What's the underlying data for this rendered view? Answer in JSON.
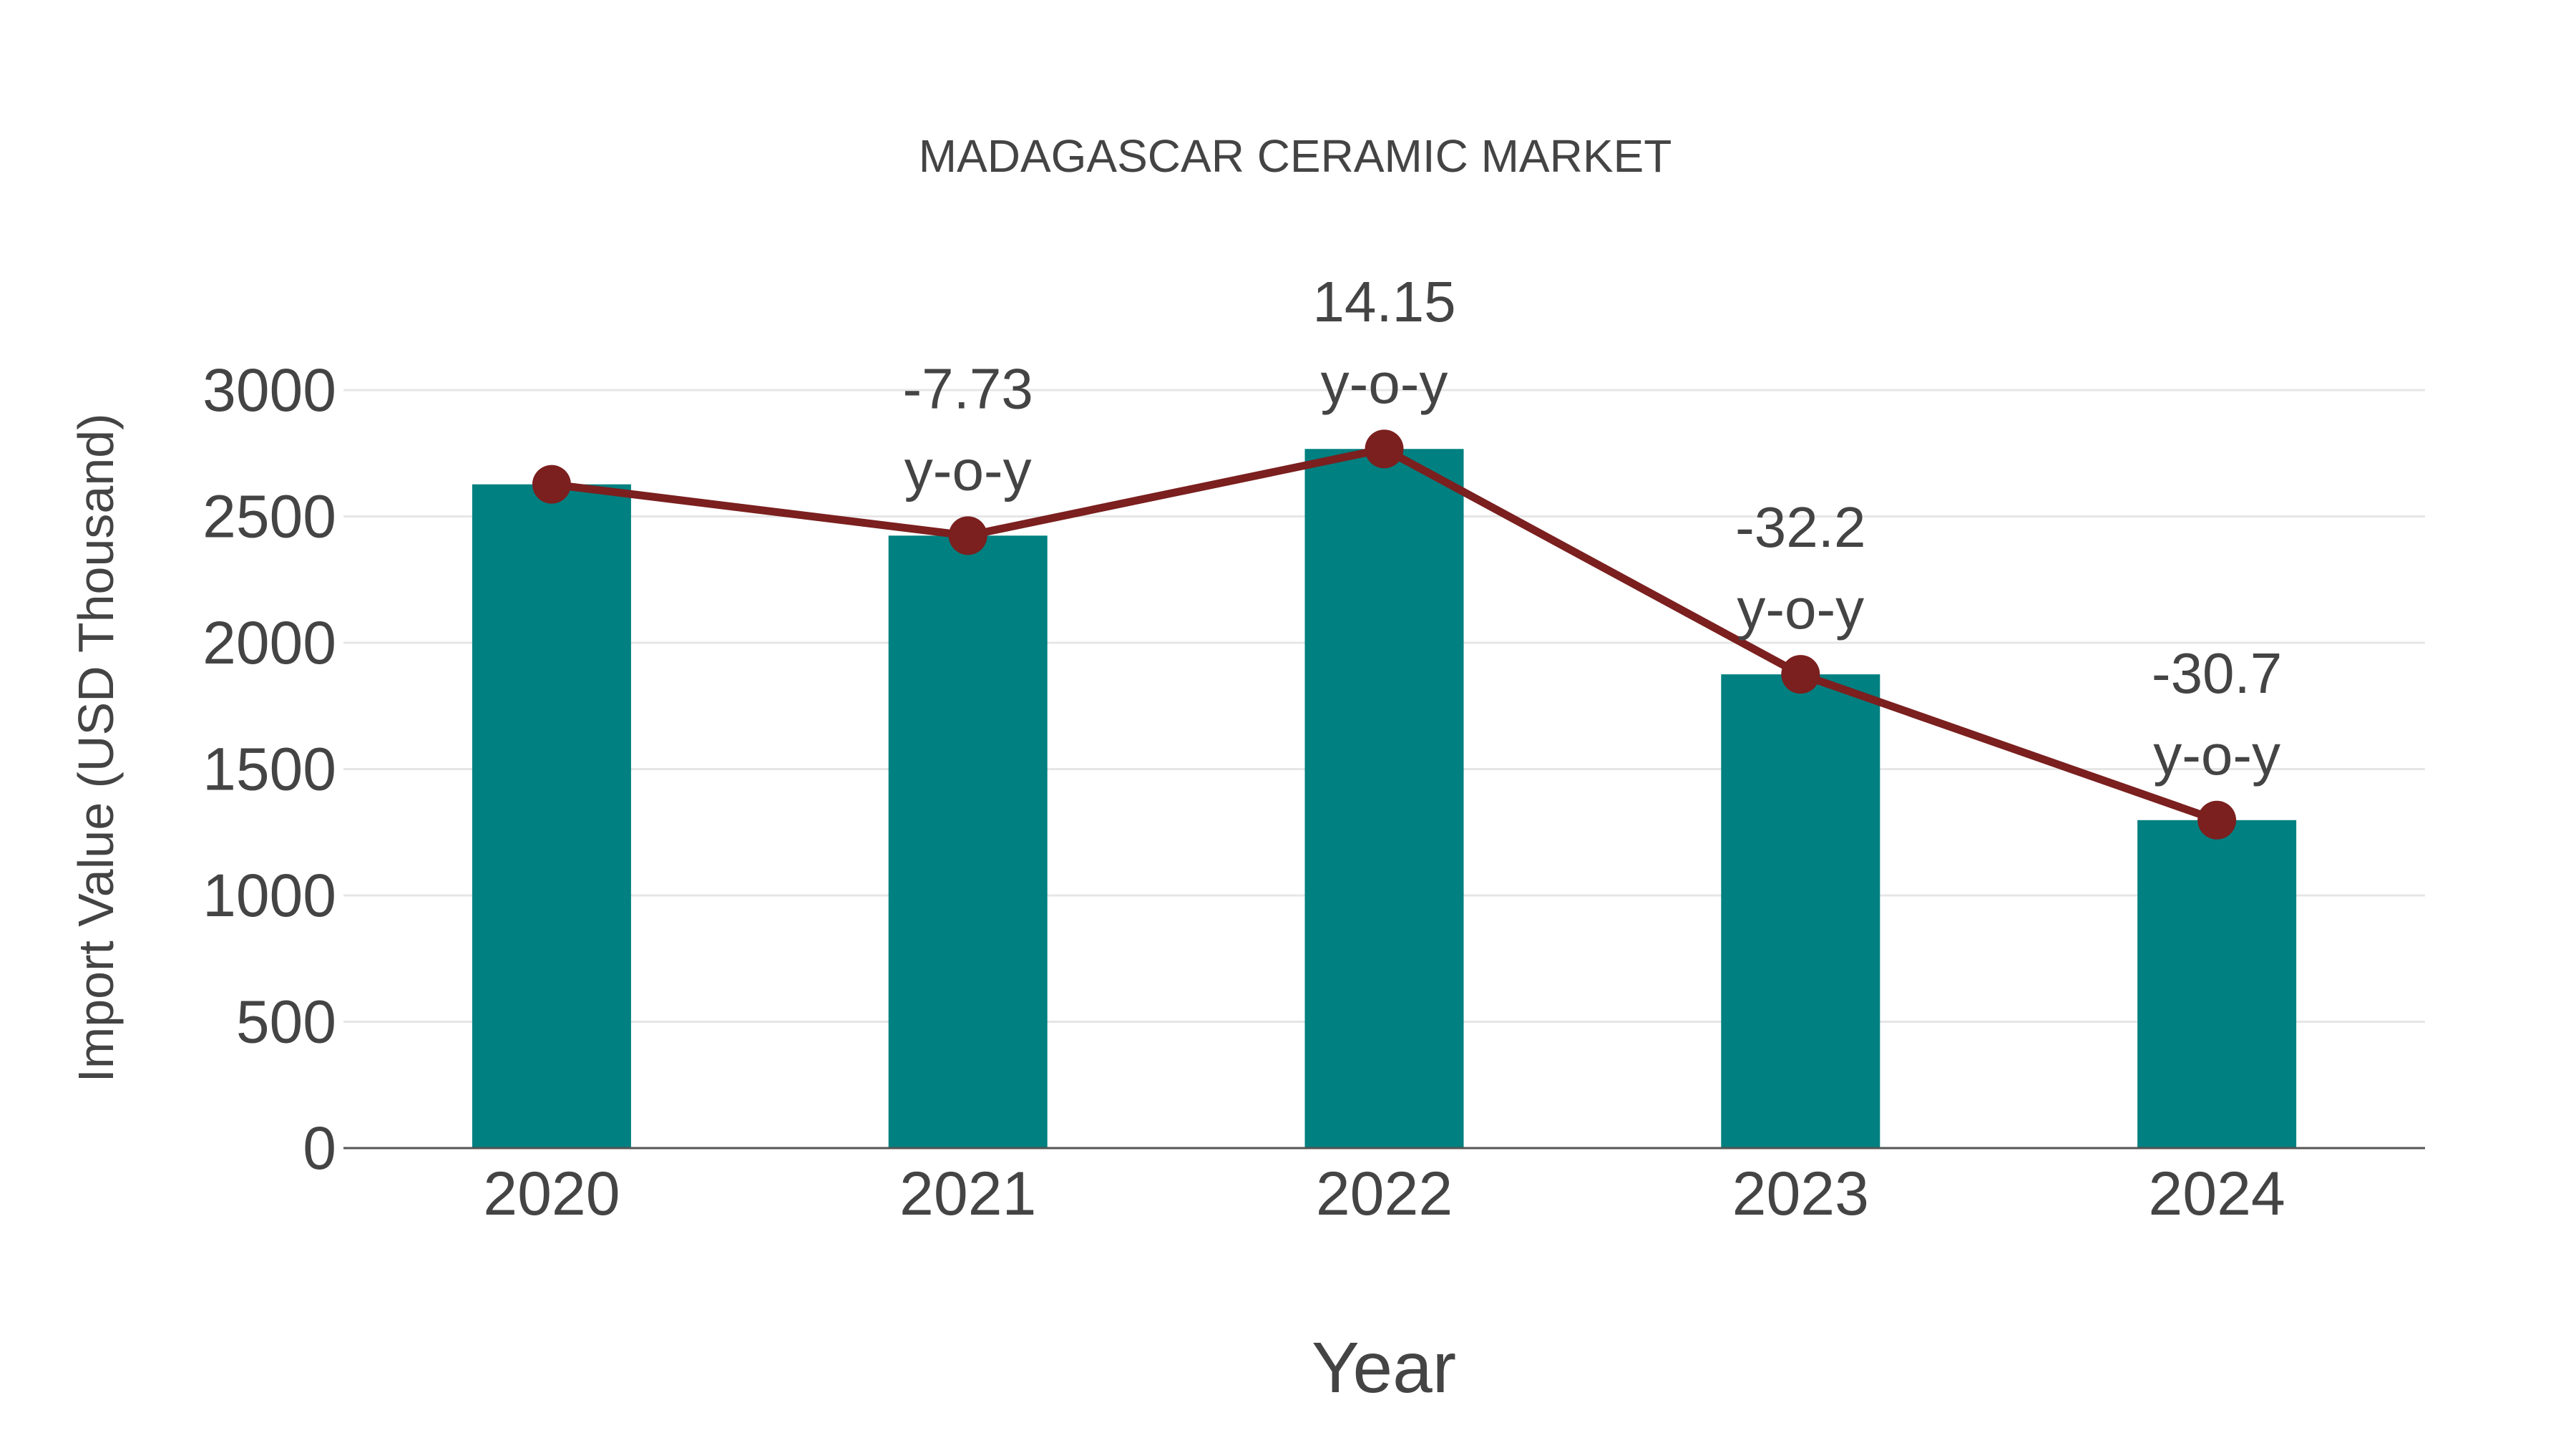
{
  "chart_data": {
    "type": "bar",
    "title": "MADAGASCAR CERAMIC MARKET",
    "xlabel": "Year",
    "ylabel": "Import Value (USD Thousand)",
    "categories": [
      "2020",
      "2021",
      "2022",
      "2023",
      "2024"
    ],
    "series": [
      {
        "name": "Import Value",
        "type": "bar",
        "color": "#008080",
        "values": [
          2627,
          2424,
          2767,
          1875,
          1298
        ]
      },
      {
        "name": "Import Value Trend",
        "type": "line",
        "color": "#7B1F1F",
        "values": [
          2627,
          2424,
          2767,
          1875,
          1298
        ]
      }
    ],
    "annotations": [
      {
        "category": "2021",
        "value": "-7.73",
        "suffix": "y-o-y"
      },
      {
        "category": "2022",
        "value": "14.15",
        "suffix": "y-o-y"
      },
      {
        "category": "2023",
        "value": "-32.2",
        "suffix": "y-o-y"
      },
      {
        "category": "2024",
        "value": "-30.7",
        "suffix": "y-o-y"
      }
    ],
    "yticks": [
      0,
      500,
      1000,
      1500,
      2000,
      2500,
      3000
    ],
    "ylim": [
      0,
      3000
    ],
    "grid": true,
    "legend": "none"
  },
  "colors": {
    "bar": "#008080",
    "line": "#7B1F1F",
    "text": "#444444",
    "grid": "#e6e6e6",
    "axis": "#555555"
  }
}
